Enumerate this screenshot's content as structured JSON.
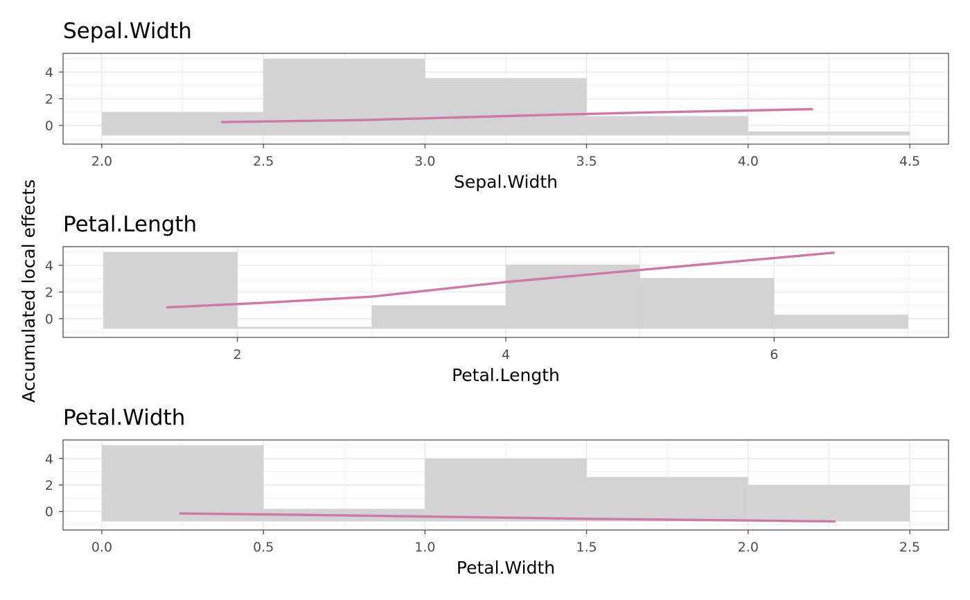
{
  "ylabel": "Accumulated local effects",
  "colors": {
    "line": "#CC79A7",
    "bar": "#D3D3D3",
    "grid": "#EBEBEB",
    "panel_border": "#333333"
  },
  "chart_data": [
    {
      "type": "bar",
      "title": "Sepal.Width",
      "xlabel": "Sepal.Width",
      "ylabel": "Accumulated local effects",
      "xlim": [
        1.88,
        4.62
      ],
      "ylim": [
        -1.4,
        5.4
      ],
      "x_ticks": [
        2.0,
        2.5,
        3.0,
        3.5,
        4.0,
        4.5
      ],
      "x_tick_labels": [
        "2.0",
        "2.5",
        "3.0",
        "3.5",
        "4.0",
        "4.5"
      ],
      "y_ticks": [
        0,
        2,
        4
      ],
      "y_tick_labels": [
        "0",
        "2",
        "4"
      ],
      "grid": true,
      "histogram": {
        "bins": [
          [
            2.0,
            2.5
          ],
          [
            2.5,
            3.0
          ],
          [
            3.0,
            3.5
          ],
          [
            3.5,
            4.0
          ],
          [
            4.0,
            4.5
          ]
        ],
        "base": -0.75,
        "heights": [
          1.0,
          5.0,
          3.55,
          0.7,
          -0.45
        ]
      },
      "series": [
        {
          "type": "line",
          "x": [
            2.37,
            2.8,
            3.1,
            3.4,
            3.7,
            4.0,
            4.2
          ],
          "y": [
            0.25,
            0.4,
            0.6,
            0.8,
            0.98,
            1.12,
            1.22
          ]
        }
      ]
    },
    {
      "type": "bar",
      "title": "Petal.Length",
      "xlabel": "Petal.Length",
      "ylabel": "Accumulated local effects",
      "xlim": [
        0.7,
        7.3
      ],
      "ylim": [
        -1.4,
        5.4
      ],
      "x_ticks": [
        2,
        4,
        6
      ],
      "x_tick_labels": [
        "2",
        "4",
        "6"
      ],
      "y_ticks": [
        0,
        2,
        4
      ],
      "y_tick_labels": [
        "0",
        "2",
        "4"
      ],
      "grid": true,
      "histogram": {
        "bins": [
          [
            1.0,
            2.0
          ],
          [
            2.0,
            3.0
          ],
          [
            3.0,
            4.0
          ],
          [
            4.0,
            5.0
          ],
          [
            5.0,
            6.0
          ],
          [
            6.0,
            7.0
          ]
        ],
        "base": -0.75,
        "heights": [
          5.0,
          -0.6,
          1.0,
          4.05,
          3.05,
          0.3
        ]
      },
      "series": [
        {
          "type": "line",
          "x": [
            1.47,
            2.2,
            3.0,
            4.0,
            5.0,
            6.0,
            6.45
          ],
          "y": [
            0.85,
            1.2,
            1.65,
            2.75,
            3.65,
            4.55,
            4.95
          ]
        }
      ]
    },
    {
      "type": "bar",
      "title": "Petal.Width",
      "xlabel": "Petal.Width",
      "ylabel": "Accumulated local effects",
      "xlim": [
        -0.12,
        2.62
      ],
      "ylim": [
        -1.4,
        5.4
      ],
      "x_ticks": [
        0.0,
        0.5,
        1.0,
        1.5,
        2.0,
        2.5
      ],
      "x_tick_labels": [
        "0.0",
        "0.5",
        "1.0",
        "1.5",
        "2.0",
        "2.5"
      ],
      "y_ticks": [
        0,
        2,
        4
      ],
      "y_tick_labels": [
        "0",
        "2",
        "4"
      ],
      "grid": true,
      "histogram": {
        "bins": [
          [
            0.0,
            0.5
          ],
          [
            0.5,
            1.0
          ],
          [
            1.0,
            1.5
          ],
          [
            1.5,
            2.0
          ],
          [
            2.0,
            2.5
          ]
        ],
        "base": -0.75,
        "heights": [
          5.0,
          0.2,
          4.0,
          2.6,
          2.0
        ]
      },
      "series": [
        {
          "type": "line",
          "x": [
            0.24,
            0.6,
            1.0,
            1.5,
            2.0,
            2.27
          ],
          "y": [
            -0.15,
            -0.25,
            -0.38,
            -0.55,
            -0.68,
            -0.75
          ]
        }
      ]
    }
  ]
}
